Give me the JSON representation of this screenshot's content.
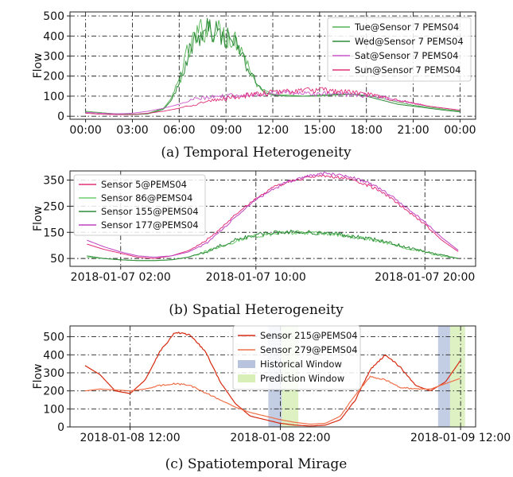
{
  "chart_data": [
    {
      "type": "line",
      "caption": "(a) Temporal Heterogeneity",
      "ylabel": "Flow",
      "ylim": [
        -15,
        520
      ],
      "yticks": [
        0,
        100,
        200,
        300,
        400,
        500
      ],
      "xlim": [
        -1,
        25
      ],
      "xticks": [
        0,
        3,
        6,
        9,
        12,
        15,
        18,
        21,
        24
      ],
      "xtick_labels": [
        "00:00",
        "03:00",
        "06:00",
        "09:00",
        "12:00",
        "15:00",
        "18:00",
        "21:00",
        "00:00"
      ],
      "grid": true,
      "legend_position": "top-right",
      "series": [
        {
          "name": "Tue@Sensor 7 PEMS04",
          "color": "#55b455",
          "width": 0.9,
          "noise": 0,
          "x": [
            0,
            1,
            2,
            3,
            4,
            5,
            5.5,
            6,
            6.5,
            7,
            7.5,
            8,
            8.5,
            9,
            9.5,
            10,
            10.5,
            11,
            12,
            13,
            14,
            15,
            16,
            17,
            18,
            19,
            20,
            21,
            22,
            23,
            24
          ],
          "y": [
            25,
            18,
            12,
            10,
            15,
            40,
            90,
            180,
            300,
            390,
            430,
            440,
            420,
            400,
            390,
            340,
            240,
            150,
            110,
            105,
            100,
            100,
            105,
            110,
            105,
            90,
            70,
            55,
            45,
            35,
            25
          ],
          "jitter": [
            0,
            0,
            0,
            0,
            0,
            0,
            0,
            30,
            60,
            70,
            70,
            65,
            65,
            65,
            60,
            50,
            30,
            10,
            0,
            0,
            0,
            0,
            0,
            0,
            0,
            0,
            0,
            0,
            0,
            0,
            0
          ]
        },
        {
          "name": "Wed@Sensor 7 PEMS04",
          "color": "#2e8b3a",
          "width": 1.0,
          "noise": 0,
          "x": [
            0,
            1,
            2,
            3,
            4,
            5,
            5.5,
            6,
            6.5,
            7,
            7.5,
            8,
            8.5,
            9,
            9.5,
            10,
            10.5,
            11,
            11.5,
            12,
            13,
            14,
            15,
            16,
            17,
            18,
            19,
            20,
            21,
            22,
            23,
            24
          ],
          "y": [
            20,
            15,
            10,
            8,
            12,
            35,
            80,
            170,
            290,
            380,
            420,
            430,
            410,
            390,
            370,
            310,
            220,
            160,
            120,
            105,
            100,
            100,
            105,
            110,
            110,
            100,
            80,
            60,
            50,
            40,
            30,
            22
          ],
          "jitter": [
            0,
            0,
            0,
            0,
            0,
            0,
            0,
            25,
            55,
            65,
            65,
            60,
            60,
            60,
            55,
            45,
            30,
            15,
            5,
            0,
            0,
            0,
            0,
            0,
            0,
            0,
            0,
            0,
            0,
            0,
            0,
            0
          ]
        },
        {
          "name": "Sat@Sensor 7 PEMS04",
          "color": "#cc55cc",
          "width": 0.9,
          "noise": 0,
          "x": [
            0,
            1,
            2,
            3,
            4,
            5,
            6,
            7,
            8,
            9,
            10,
            11,
            12,
            13,
            14,
            15,
            16,
            17,
            18,
            19,
            20,
            21,
            22,
            23,
            24
          ],
          "y": [
            20,
            15,
            12,
            15,
            25,
            40,
            60,
            85,
            95,
            100,
            105,
            110,
            115,
            115,
            115,
            110,
            110,
            108,
            105,
            95,
            80,
            65,
            50,
            40,
            30
          ],
          "jitter": [
            0,
            0,
            0,
            0,
            0,
            0,
            0,
            10,
            10,
            12,
            12,
            12,
            12,
            12,
            12,
            12,
            12,
            12,
            12,
            10,
            8,
            5,
            0,
            0,
            0
          ]
        },
        {
          "name": "Sun@Sensor 7 PEMS04",
          "color": "#e0307a",
          "width": 0.9,
          "noise": 0,
          "x": [
            0,
            1,
            2,
            3,
            4,
            5,
            6,
            7,
            8,
            9,
            10,
            11,
            12,
            13,
            14,
            15,
            16,
            17,
            18,
            19,
            20,
            21,
            22,
            23,
            24
          ],
          "y": [
            15,
            10,
            8,
            8,
            15,
            25,
            40,
            60,
            75,
            90,
            100,
            110,
            118,
            125,
            130,
            130,
            125,
            120,
            110,
            95,
            80,
            65,
            50,
            40,
            30
          ],
          "jitter": [
            0,
            0,
            0,
            0,
            0,
            0,
            0,
            8,
            10,
            12,
            12,
            14,
            15,
            15,
            15,
            15,
            15,
            15,
            12,
            10,
            8,
            5,
            0,
            0,
            0
          ]
        }
      ]
    },
    {
      "type": "line",
      "caption": "(b) Spatial Heterogeneity",
      "ylabel": "Flow",
      "ylim": [
        20,
        385
      ],
      "yticks": [
        50,
        150,
        250,
        350
      ],
      "xlim": [
        -1,
        23
      ],
      "xticks": [
        2,
        10,
        20
      ],
      "xtick_labels": [
        "2018-01-07 02:00",
        "2018-01-07 10:00",
        "2018-01-07 20:00"
      ],
      "grid": true,
      "legend_position": "top-left",
      "series": [
        {
          "name": "Sensor 5@PEMS04",
          "color": "#e0307a",
          "width": 1.0,
          "x": [
            0,
            1,
            2,
            3,
            4,
            5,
            6,
            7,
            8,
            9,
            10,
            11,
            12,
            13,
            14,
            15,
            16,
            17,
            18,
            19,
            20,
            21,
            22
          ],
          "y": [
            105,
            85,
            70,
            55,
            50,
            60,
            80,
            115,
            170,
            230,
            280,
            320,
            345,
            360,
            365,
            360,
            345,
            320,
            280,
            230,
            180,
            120,
            75
          ],
          "jitter": [
            0,
            0,
            0,
            0,
            0,
            0,
            0,
            4,
            4,
            4,
            4,
            6,
            6,
            6,
            6,
            6,
            6,
            6,
            4,
            4,
            4,
            0,
            0
          ]
        },
        {
          "name": "Sensor 86@PEMS04",
          "color": "#6fce6f",
          "width": 1.0,
          "x": [
            0,
            1,
            2,
            3,
            4,
            5,
            6,
            7,
            8,
            9,
            10,
            11,
            12,
            13,
            14,
            15,
            16,
            17,
            18,
            19,
            20,
            21,
            22
          ],
          "y": [
            55,
            50,
            45,
            42,
            42,
            45,
            55,
            75,
            100,
            120,
            135,
            145,
            150,
            148,
            145,
            140,
            130,
            120,
            105,
            90,
            75,
            60,
            50
          ],
          "jitter": [
            0,
            0,
            0,
            0,
            0,
            0,
            0,
            6,
            8,
            8,
            8,
            8,
            8,
            8,
            8,
            8,
            8,
            8,
            6,
            6,
            4,
            4,
            0
          ]
        },
        {
          "name": "Sensor 155@PEMS04",
          "color": "#2e8b3a",
          "width": 1.0,
          "x": [
            0,
            1,
            2,
            3,
            4,
            5,
            6,
            7,
            8,
            9,
            10,
            11,
            12,
            13,
            14,
            15,
            16,
            17,
            18,
            19,
            20,
            21,
            22
          ],
          "y": [
            60,
            50,
            45,
            42,
            42,
            45,
            55,
            75,
            100,
            125,
            140,
            148,
            152,
            150,
            147,
            142,
            132,
            122,
            108,
            92,
            76,
            62,
            50
          ],
          "jitter": [
            0,
            0,
            0,
            0,
            0,
            0,
            0,
            6,
            8,
            8,
            8,
            8,
            8,
            8,
            8,
            8,
            8,
            8,
            6,
            6,
            4,
            4,
            0
          ]
        },
        {
          "name": "Sensor 177@PEMS04",
          "color": "#c040c0",
          "width": 1.0,
          "x": [
            0,
            1,
            2,
            3,
            4,
            5,
            6,
            7,
            8,
            9,
            10,
            11,
            12,
            13,
            14,
            15,
            16,
            17,
            18,
            19,
            20,
            21,
            22
          ],
          "y": [
            120,
            95,
            75,
            60,
            55,
            60,
            75,
            105,
            160,
            220,
            275,
            315,
            345,
            365,
            375,
            370,
            355,
            330,
            290,
            240,
            190,
            130,
            80
          ],
          "jitter": [
            0,
            0,
            0,
            0,
            0,
            0,
            0,
            4,
            4,
            4,
            4,
            6,
            6,
            6,
            6,
            6,
            6,
            6,
            4,
            4,
            4,
            0,
            0
          ]
        }
      ]
    },
    {
      "type": "line",
      "caption": "(c) Spatiotemporal Mirage",
      "ylabel": "Flow",
      "ylim": [
        0,
        560
      ],
      "yticks": [
        0,
        100,
        200,
        300,
        400,
        500
      ],
      "xlim": [
        -1,
        26
      ],
      "xticks": [
        3,
        13,
        25
      ],
      "xtick_labels": [
        "2018-01-08 12:00",
        "2018-01-08 22:00",
        "2018-01-09 12:00"
      ],
      "grid": true,
      "legend_position": "top-center",
      "spans": [
        {
          "name": "Historical Window",
          "color": "#b8c4de",
          "x": [
            12.2,
            13.1
          ]
        },
        {
          "name": "Prediction Window",
          "color": "#d8efb8",
          "x": [
            13.1,
            14.2
          ]
        },
        {
          "name": "Historical Window",
          "color": "#b8c4de",
          "x": [
            23.5,
            24.3
          ]
        },
        {
          "name": "Prediction Window",
          "color": "#d8efb8",
          "x": [
            24.3,
            25.3
          ]
        }
      ],
      "series": [
        {
          "name": "Sensor 215@PEMS04",
          "color": "#d62a10",
          "width": 1.2,
          "x": [
            0,
            1,
            2,
            3,
            4,
            5,
            6,
            7,
            8,
            9,
            10,
            11,
            12,
            13,
            14,
            15,
            16,
            17,
            18,
            19,
            20,
            21,
            22,
            23,
            24,
            25
          ],
          "y": [
            340,
            290,
            200,
            185,
            260,
            420,
            525,
            510,
            420,
            250,
            130,
            60,
            40,
            20,
            10,
            5,
            10,
            40,
            150,
            320,
            400,
            330,
            230,
            200,
            250,
            370
          ],
          "jitter": [
            0,
            0,
            0,
            0,
            0,
            4,
            5,
            5,
            4,
            3,
            0,
            0,
            0,
            0,
            0,
            0,
            0,
            0,
            3,
            4,
            5,
            4,
            3,
            0,
            0,
            0
          ]
        },
        {
          "name": "Sensor 279@PEMS04",
          "color": "#f0704a",
          "width": 1.2,
          "x": [
            0,
            1,
            2,
            3,
            4,
            5,
            6,
            7,
            8,
            9,
            10,
            11,
            12,
            13,
            14,
            15,
            16,
            17,
            18,
            19,
            20,
            21,
            22,
            23,
            24,
            25
          ],
          "y": [
            200,
            210,
            205,
            200,
            210,
            230,
            240,
            230,
            190,
            150,
            110,
            80,
            60,
            40,
            25,
            15,
            20,
            60,
            180,
            280,
            260,
            220,
            210,
            210,
            240,
            270
          ],
          "jitter": [
            0,
            0,
            0,
            0,
            0,
            5,
            5,
            5,
            4,
            3,
            0,
            0,
            0,
            0,
            0,
            0,
            0,
            0,
            3,
            4,
            5,
            4,
            3,
            0,
            0,
            0
          ]
        }
      ]
    }
  ]
}
